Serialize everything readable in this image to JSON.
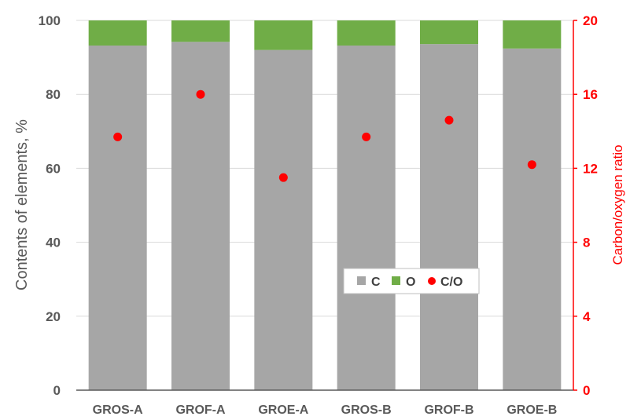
{
  "chart_data": {
    "type": "bar",
    "stacked": true,
    "categories": [
      "GROS-A",
      "GROF-A",
      "GROE-A",
      "GROS-B",
      "GROF-B",
      "GROE-B"
    ],
    "series": [
      {
        "name": "C",
        "axis": "left",
        "color": "#a6a6a6",
        "values": [
          93.2,
          94.2,
          92.0,
          93.2,
          93.6,
          92.4
        ]
      },
      {
        "name": "O",
        "axis": "left",
        "color": "#70ad47",
        "values": [
          6.8,
          5.8,
          8.0,
          6.8,
          6.4,
          7.6
        ]
      }
    ],
    "ratio_series": {
      "name": "C/O",
      "type": "scatter",
      "axis": "right",
      "color": "#ff0000",
      "values": [
        13.7,
        16.0,
        11.5,
        13.7,
        14.6,
        12.2
      ]
    },
    "ylabel": "Contents of elements, %",
    "ylabel_right": "Carbon/oxygen ratio",
    "ylim": [
      0,
      100
    ],
    "ylim_right": [
      0,
      20
    ],
    "yticks": [
      "0",
      "20",
      "40",
      "60",
      "80",
      "100"
    ],
    "yticks_right": [
      "0",
      "4",
      "8",
      "12",
      "16",
      "20"
    ],
    "grid": true,
    "legend": "center-right"
  }
}
